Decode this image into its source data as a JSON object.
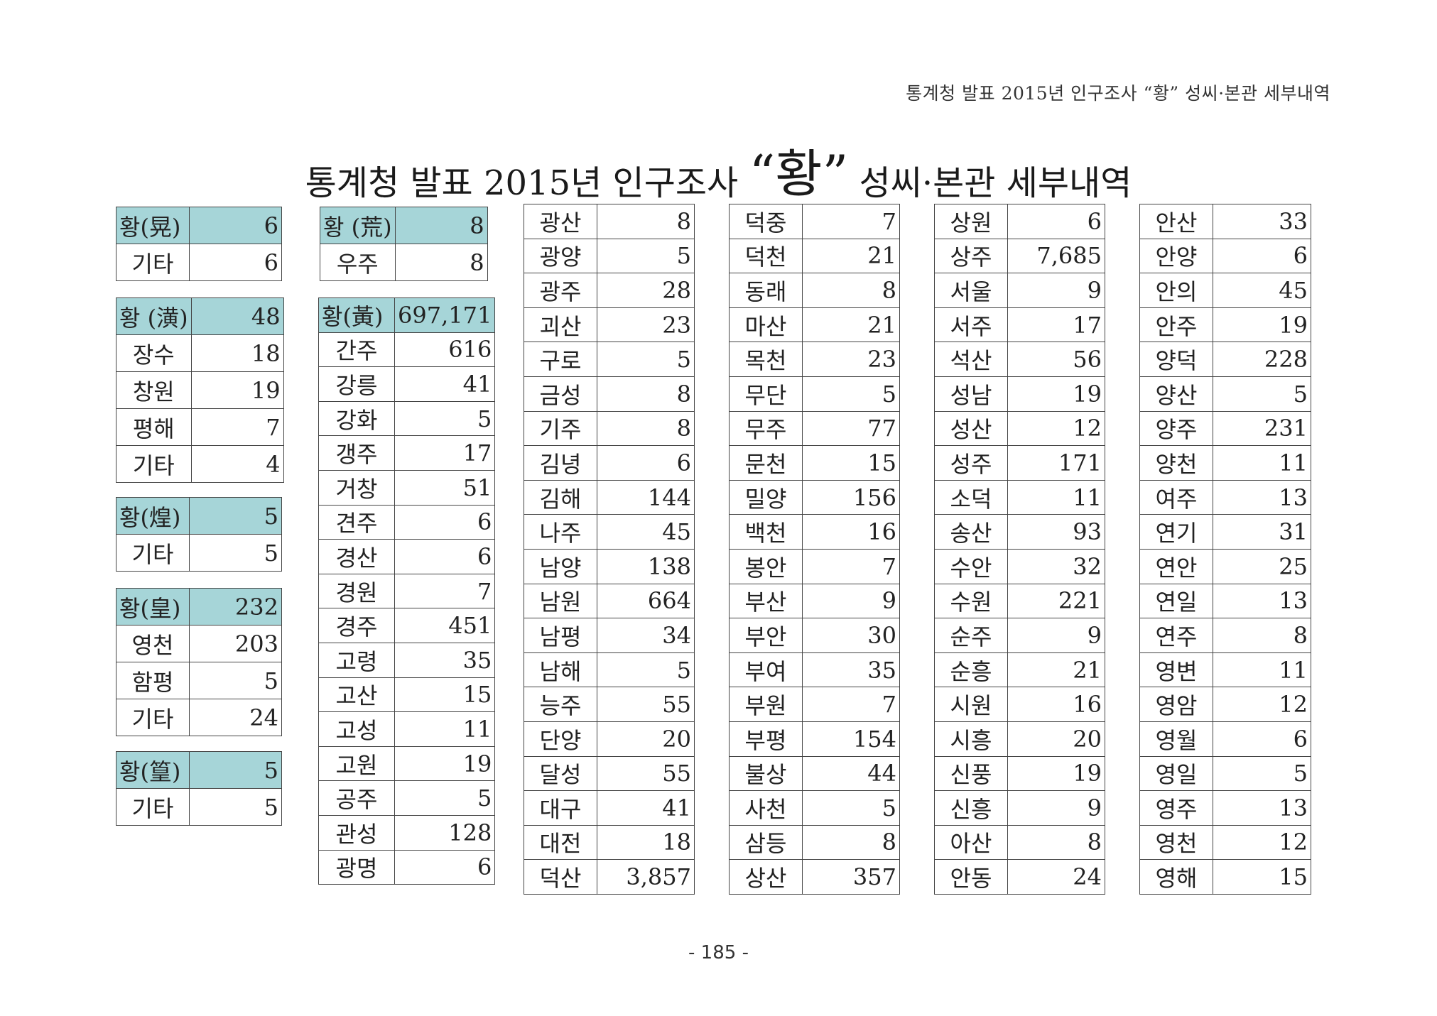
{
  "running_header": "통계청 발표 2015년 인구조사 “황” 성씨·본관 세부내역",
  "title": {
    "prefix": "통계청 발표 2015년 인구조사 ",
    "quoted": "“황”",
    "suffix": " 성씨·본관 세부내역"
  },
  "page_number": "- 185 -",
  "small_tables": [
    {
      "header": {
        "name": "황(晃)",
        "value": "6"
      },
      "rows": [
        {
          "name": "기타",
          "value": "6"
        }
      ]
    },
    {
      "header": {
        "name": "황 (潢)",
        "value": "48"
      },
      "rows": [
        {
          "name": "장수",
          "value": "18"
        },
        {
          "name": "창원",
          "value": "19"
        },
        {
          "name": "평해",
          "value": "7"
        },
        {
          "name": "기타",
          "value": "4"
        }
      ]
    },
    {
      "header": {
        "name": "황(煌)",
        "value": "5"
      },
      "rows": [
        {
          "name": "기타",
          "value": "5"
        }
      ]
    },
    {
      "header": {
        "name": "황(皇)",
        "value": "232"
      },
      "rows": [
        {
          "name": "영천",
          "value": "203"
        },
        {
          "name": "함평",
          "value": "5"
        },
        {
          "name": "기타",
          "value": "24"
        }
      ]
    },
    {
      "header": {
        "name": "황(篁)",
        "value": "5"
      },
      "rows": [
        {
          "name": "기타",
          "value": "5"
        }
      ]
    },
    {
      "header": {
        "name": "황 (荒)",
        "value": "8"
      },
      "rows": [
        {
          "name": "우주",
          "value": "8"
        }
      ]
    }
  ],
  "main_table": {
    "header": {
      "name": "황(黃)",
      "value": "697,171"
    },
    "rows": [
      {
        "name": "간주",
        "value": "616"
      },
      {
        "name": "강릉",
        "value": "41"
      },
      {
        "name": "강화",
        "value": "5"
      },
      {
        "name": "갱주",
        "value": "17"
      },
      {
        "name": "거창",
        "value": "51"
      },
      {
        "name": "견주",
        "value": "6"
      },
      {
        "name": "경산",
        "value": "6"
      },
      {
        "name": "경원",
        "value": "7"
      },
      {
        "name": "경주",
        "value": "451"
      },
      {
        "name": "고령",
        "value": "35"
      },
      {
        "name": "고산",
        "value": "15"
      },
      {
        "name": "고성",
        "value": "11"
      },
      {
        "name": "고원",
        "value": "19"
      },
      {
        "name": "공주",
        "value": "5"
      },
      {
        "name": "관성",
        "value": "128"
      },
      {
        "name": "광명",
        "value": "6"
      }
    ]
  },
  "detail_columns": [
    [
      {
        "name": "광산",
        "value": "8"
      },
      {
        "name": "광양",
        "value": "5"
      },
      {
        "name": "광주",
        "value": "28"
      },
      {
        "name": "괴산",
        "value": "23"
      },
      {
        "name": "구로",
        "value": "5"
      },
      {
        "name": "금성",
        "value": "8"
      },
      {
        "name": "기주",
        "value": "8"
      },
      {
        "name": "김녕",
        "value": "6"
      },
      {
        "name": "김해",
        "value": "144"
      },
      {
        "name": "나주",
        "value": "45"
      },
      {
        "name": "남양",
        "value": "138"
      },
      {
        "name": "남원",
        "value": "664"
      },
      {
        "name": "남평",
        "value": "34"
      },
      {
        "name": "남해",
        "value": "5"
      },
      {
        "name": "능주",
        "value": "55"
      },
      {
        "name": "단양",
        "value": "20"
      },
      {
        "name": "달성",
        "value": "55"
      },
      {
        "name": "대구",
        "value": "41"
      },
      {
        "name": "대전",
        "value": "18"
      },
      {
        "name": "덕산",
        "value": "3,857"
      }
    ],
    [
      {
        "name": "덕중",
        "value": "7"
      },
      {
        "name": "덕천",
        "value": "21"
      },
      {
        "name": "동래",
        "value": "8"
      },
      {
        "name": "마산",
        "value": "21"
      },
      {
        "name": "목천",
        "value": "23"
      },
      {
        "name": "무단",
        "value": "5"
      },
      {
        "name": "무주",
        "value": "77"
      },
      {
        "name": "문천",
        "value": "15"
      },
      {
        "name": "밀양",
        "value": "156"
      },
      {
        "name": "백천",
        "value": "16"
      },
      {
        "name": "봉안",
        "value": "7"
      },
      {
        "name": "부산",
        "value": "9"
      },
      {
        "name": "부안",
        "value": "30"
      },
      {
        "name": "부여",
        "value": "35"
      },
      {
        "name": "부원",
        "value": "7"
      },
      {
        "name": "부평",
        "value": "154"
      },
      {
        "name": "불상",
        "value": "44"
      },
      {
        "name": "사천",
        "value": "5"
      },
      {
        "name": "삼등",
        "value": "8"
      },
      {
        "name": "상산",
        "value": "357"
      }
    ],
    [
      {
        "name": "상원",
        "value": "6"
      },
      {
        "name": "상주",
        "value": "7,685"
      },
      {
        "name": "서울",
        "value": "9"
      },
      {
        "name": "서주",
        "value": "17"
      },
      {
        "name": "석산",
        "value": "56"
      },
      {
        "name": "성남",
        "value": "19"
      },
      {
        "name": "성산",
        "value": "12"
      },
      {
        "name": "성주",
        "value": "171"
      },
      {
        "name": "소덕",
        "value": "11"
      },
      {
        "name": "송산",
        "value": "93"
      },
      {
        "name": "수안",
        "value": "32"
      },
      {
        "name": "수원",
        "value": "221"
      },
      {
        "name": "순주",
        "value": "9"
      },
      {
        "name": "순흥",
        "value": "21"
      },
      {
        "name": "시원",
        "value": "16"
      },
      {
        "name": "시흥",
        "value": "20"
      },
      {
        "name": "신풍",
        "value": "19"
      },
      {
        "name": "신흥",
        "value": "9"
      },
      {
        "name": "아산",
        "value": "8"
      },
      {
        "name": "안동",
        "value": "24"
      }
    ],
    [
      {
        "name": "안산",
        "value": "33"
      },
      {
        "name": "안양",
        "value": "6"
      },
      {
        "name": "안의",
        "value": "45"
      },
      {
        "name": "안주",
        "value": "19"
      },
      {
        "name": "양덕",
        "value": "228"
      },
      {
        "name": "양산",
        "value": "5"
      },
      {
        "name": "양주",
        "value": "231"
      },
      {
        "name": "양천",
        "value": "11"
      },
      {
        "name": "여주",
        "value": "13"
      },
      {
        "name": "연기",
        "value": "31"
      },
      {
        "name": "연안",
        "value": "25"
      },
      {
        "name": "연일",
        "value": "13"
      },
      {
        "name": "연주",
        "value": "8"
      },
      {
        "name": "영변",
        "value": "11"
      },
      {
        "name": "영암",
        "value": "12"
      },
      {
        "name": "영월",
        "value": "6"
      },
      {
        "name": "영일",
        "value": "5"
      },
      {
        "name": "영주",
        "value": "13"
      },
      {
        "name": "영천",
        "value": "12"
      },
      {
        "name": "영해",
        "value": "15"
      }
    ]
  ]
}
